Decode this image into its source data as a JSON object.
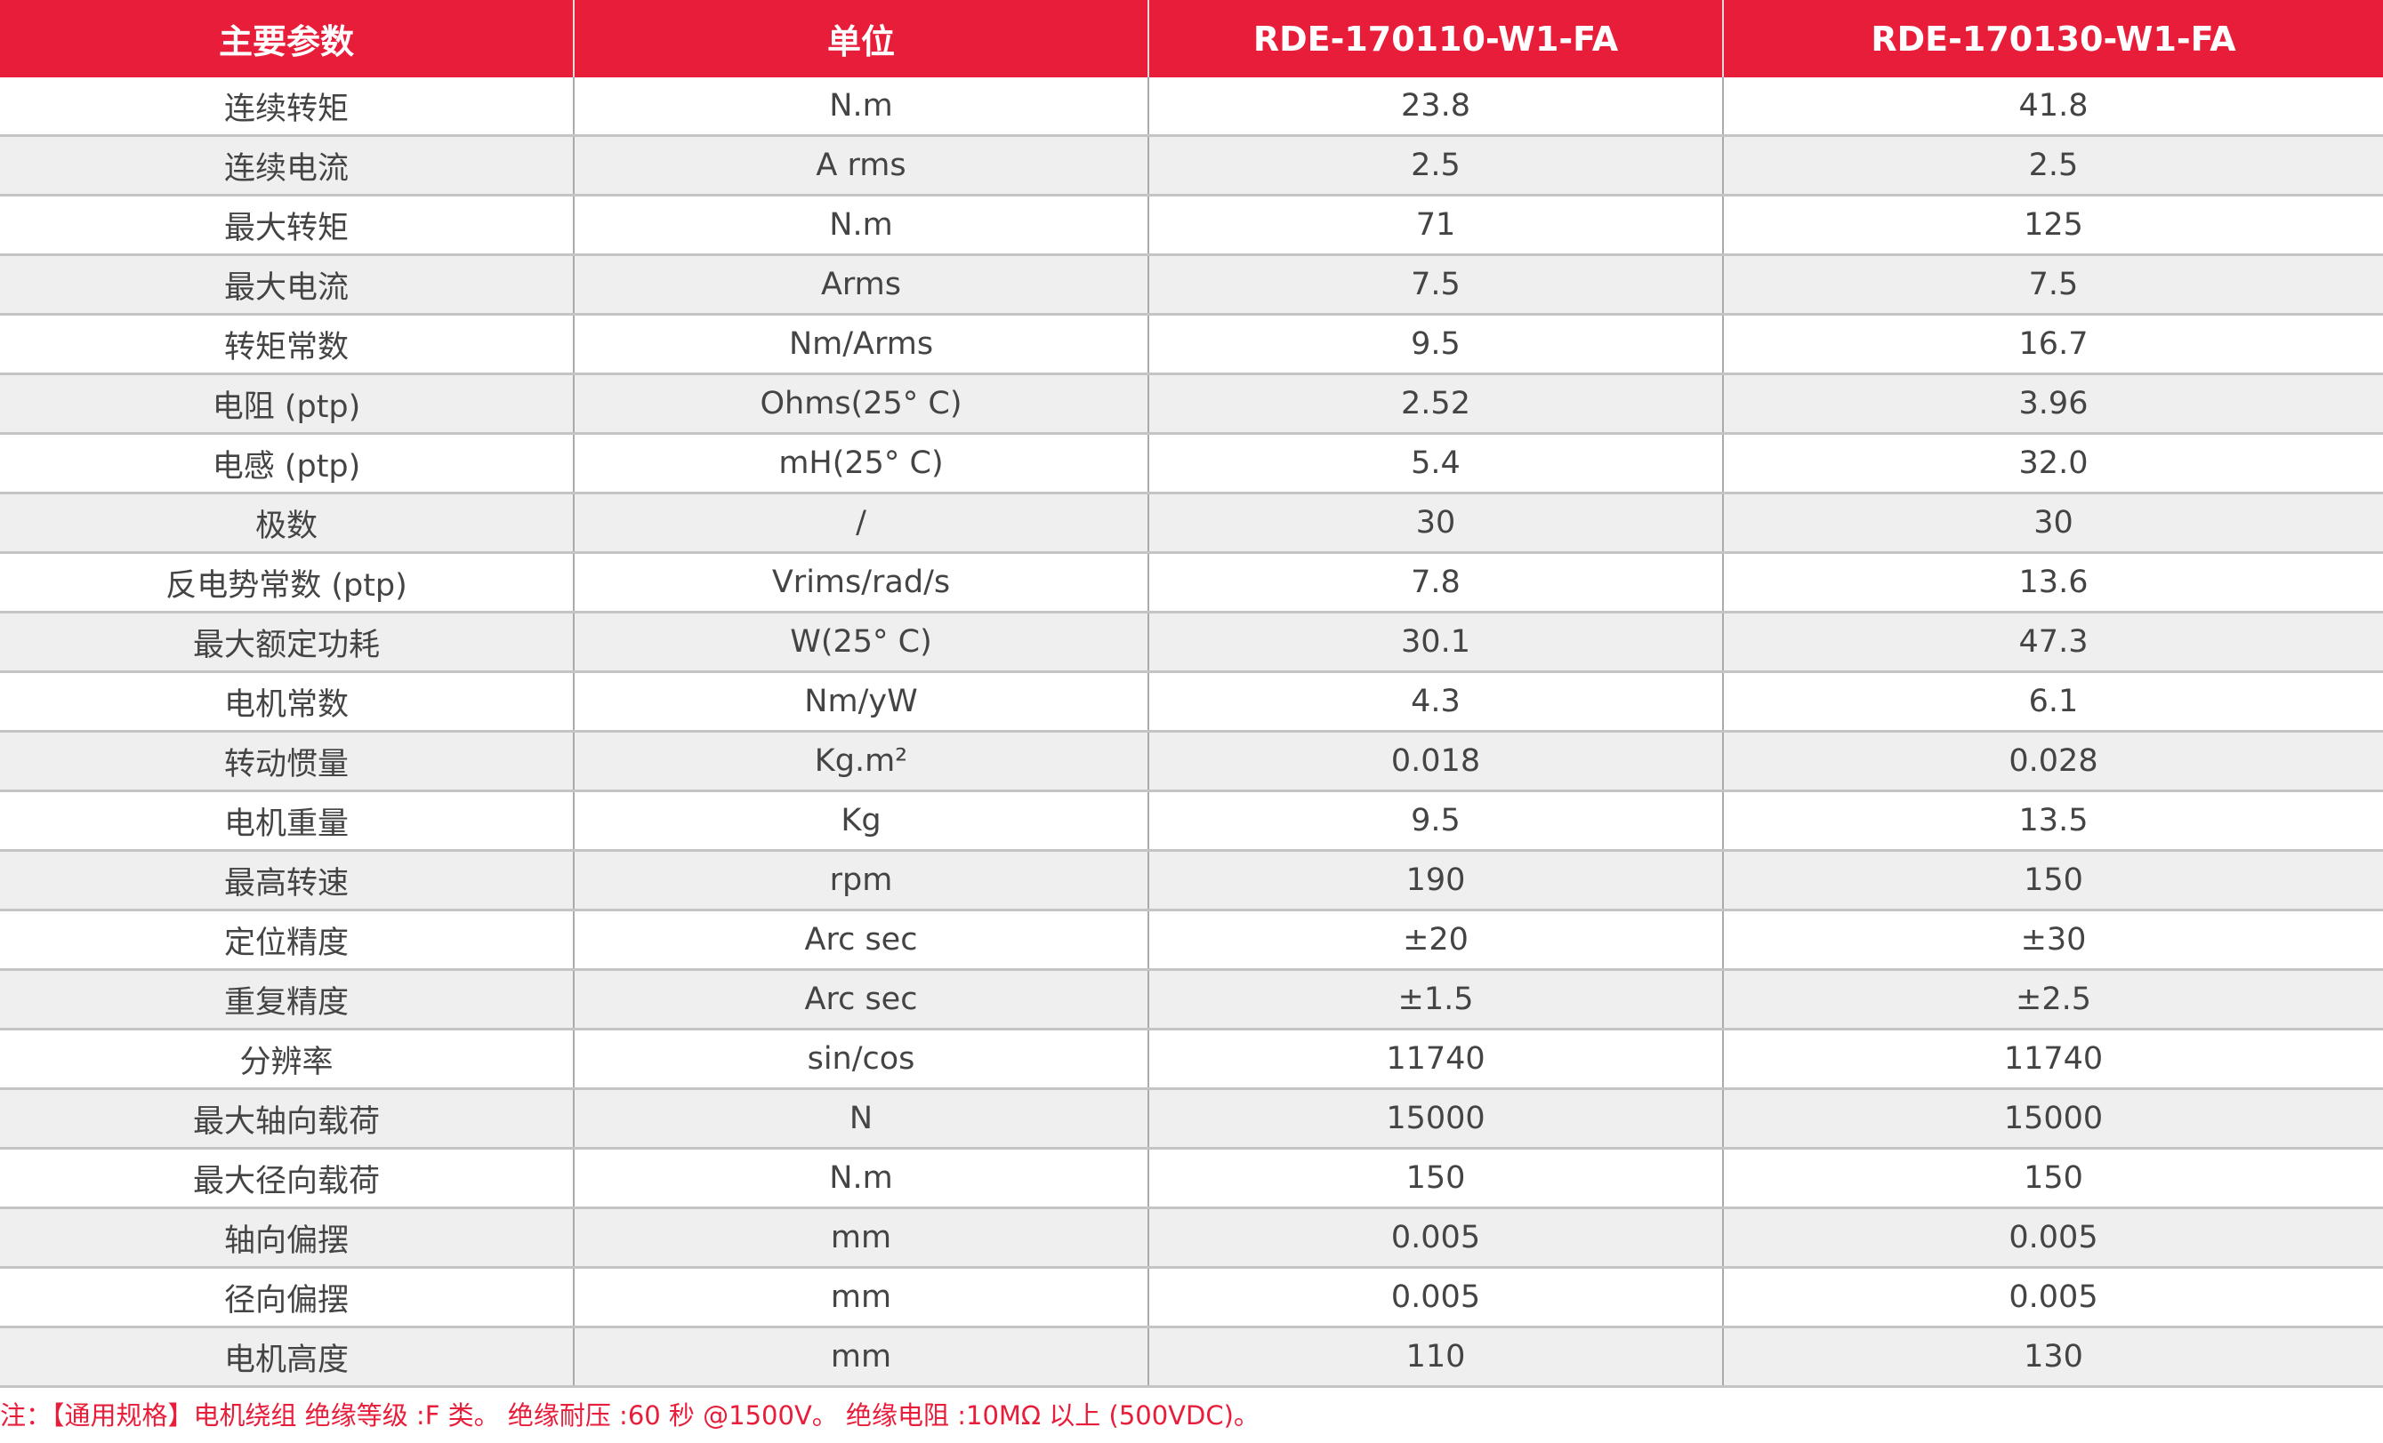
{
  "colors": {
    "header_bg": "#e81d3a",
    "alt_row_bg": "#efefef",
    "note_text": "#e81d3a"
  },
  "headers": [
    "主要参数",
    "单位",
    "RDE-170110-W1-FA",
    "RDE-170130-W1-FA"
  ],
  "rows": [
    [
      "连续转矩",
      "N.m",
      "23.8",
      "41.8"
    ],
    [
      "连续电流",
      "A rms",
      "2.5",
      "2.5"
    ],
    [
      "最大转矩",
      "N.m",
      "71",
      "125"
    ],
    [
      "最大电流",
      "Arms",
      "7.5",
      "7.5"
    ],
    [
      "转矩常数",
      "Nm/Arms",
      "9.5",
      "16.7"
    ],
    [
      "电阻 (ptp)",
      "Ohms(25° C)",
      "2.52",
      "3.96"
    ],
    [
      "电感 (ptp)",
      "mH(25° C)",
      "5.4",
      "32.0"
    ],
    [
      "极数",
      "/",
      "30",
      "30"
    ],
    [
      "反电势常数 (ptp)",
      "Vrims/rad/s",
      "7.8",
      "13.6"
    ],
    [
      "最大额定功耗",
      "W(25° C)",
      "30.1",
      "47.3"
    ],
    [
      "电机常数",
      "Nm/yW",
      "4.3",
      "6.1"
    ],
    [
      "转动惯量",
      "Kg.m²",
      "0.018",
      "0.028"
    ],
    [
      "电机重量",
      "Kg",
      "9.5",
      "13.5"
    ],
    [
      "最高转速",
      "rpm",
      "190",
      "150"
    ],
    [
      "定位精度",
      "Arc sec",
      "±20",
      "±30"
    ],
    [
      "重复精度",
      "Arc sec",
      "±1.5",
      "±2.5"
    ],
    [
      "分辨率",
      "sin/cos",
      "11740",
      "11740"
    ],
    [
      "最大轴向载荷",
      "N",
      "15000",
      "15000"
    ],
    [
      "最大径向载荷",
      "N.m",
      "150",
      "150"
    ],
    [
      "轴向偏摆",
      "mm",
      "0.005",
      "0.005"
    ],
    [
      "径向偏摆",
      "mm",
      "0.005",
      "0.005"
    ],
    [
      "电机高度",
      "mm",
      "110",
      "130"
    ]
  ],
  "note": "注：【通用规格】电机绕组  绝缘等级 :F 类。  绝缘耐压 :60 秒 @1500V。  绝缘电阻 :10MΩ 以上 (500VDC)。"
}
